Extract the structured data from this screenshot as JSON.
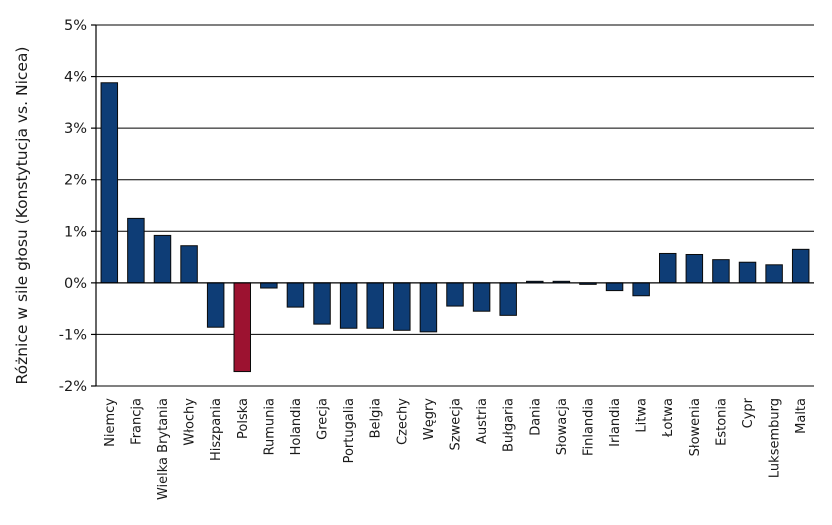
{
  "chart_data": {
    "type": "bar",
    "ylabel": "Różnice w sile głosu (Konstytucja vs. Nicea)",
    "xlabel": "",
    "ylim": [
      -2,
      5
    ],
    "yticks": [
      5,
      4,
      3,
      2,
      1,
      0,
      -1,
      -2
    ],
    "ytick_labels": [
      "5%",
      "4%",
      "3%",
      "2%",
      "1%",
      "0%",
      "-1%",
      "-2%"
    ],
    "grid": "horizontal",
    "categories": [
      "Niemcy",
      "Francja",
      "Wielka Brytania",
      "Włochy",
      "Hiszpania",
      "Polska",
      "Rumunia",
      "Holandia",
      "Grecja",
      "Portugalia",
      "Belgia",
      "Czechy",
      "Węgry",
      "Szwecja",
      "Austria",
      "Bułgaria",
      "Dania",
      "Słowacja",
      "Finlandia",
      "Irlandia",
      "Litwa",
      "Łotwa",
      "Słowenia",
      "Estonia",
      "Cypr",
      "Luksemburg",
      "Malta"
    ],
    "values": [
      3.88,
      1.25,
      0.92,
      0.72,
      -0.86,
      -1.72,
      -0.1,
      -0.47,
      -0.8,
      -0.88,
      -0.88,
      -0.92,
      -0.95,
      -0.45,
      -0.55,
      -0.63,
      0.03,
      0.03,
      -0.02,
      -0.15,
      -0.25,
      0.57,
      0.55,
      0.45,
      0.4,
      0.35,
      0.65
    ],
    "highlight": "Polska",
    "colors": {
      "default": "#0e3d76",
      "highlight": "#9c1230"
    }
  }
}
